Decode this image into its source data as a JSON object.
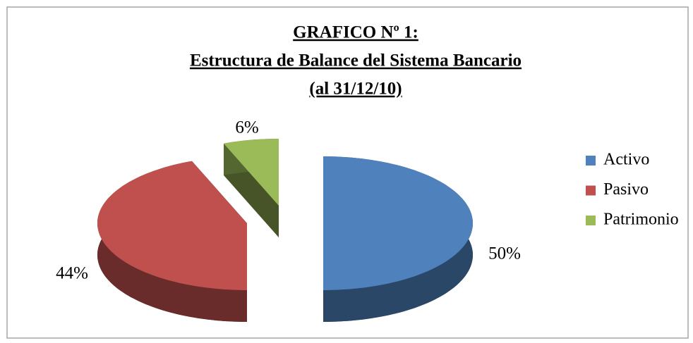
{
  "chart_data": {
    "type": "pie",
    "title": [
      "GRAFICO Nº 1:",
      "Estructura de Balance del Sistema Bancario",
      "(al 31/12/10)"
    ],
    "categories": [
      "Activo",
      "Pasivo",
      "Patrimonio"
    ],
    "values": [
      50,
      44,
      6
    ],
    "value_labels": [
      "50%",
      "44%",
      "6%"
    ],
    "colors": [
      "#4f81bd",
      "#c0504d",
      "#9bbb59"
    ],
    "legend": "right"
  }
}
